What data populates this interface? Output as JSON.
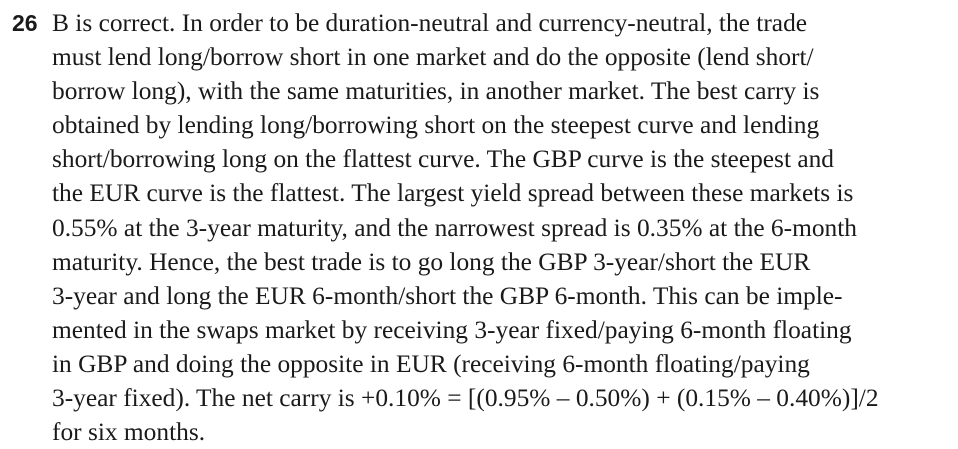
{
  "question_number": "26",
  "lines": [
    "B is correct. In order to be duration-neutral and currency-neutral, the trade",
    "must lend long/borrow short in one market and do the opposite (lend short/",
    "borrow long), with the same maturities, in another market. The best carry is",
    "obtained by lending long/borrowing short on the steepest curve and lending",
    "short/borrowing long on the flattest curve. The GBP curve is the steepest and",
    "the EUR curve is the flattest. The largest yield spread between these markets is",
    "0.55% at the 3-year maturity, and the narrowest spread is 0.35% at the 6-month",
    "maturity. Hence, the best trade is to go long the GBP 3-year/short the EUR",
    "3-year and long the EUR 6-month/short the GBP 6-month. This can be imple-",
    "mented in the swaps market by receiving 3-year fixed/paying 6-month floating",
    "in GBP and doing the opposite in EUR (receiving 6-month floating/paying",
    "3-year fixed). The net carry is +0.10% = [(0.95% – 0.50%) + (0.15% – 0.40%)]/2",
    "for six months."
  ]
}
